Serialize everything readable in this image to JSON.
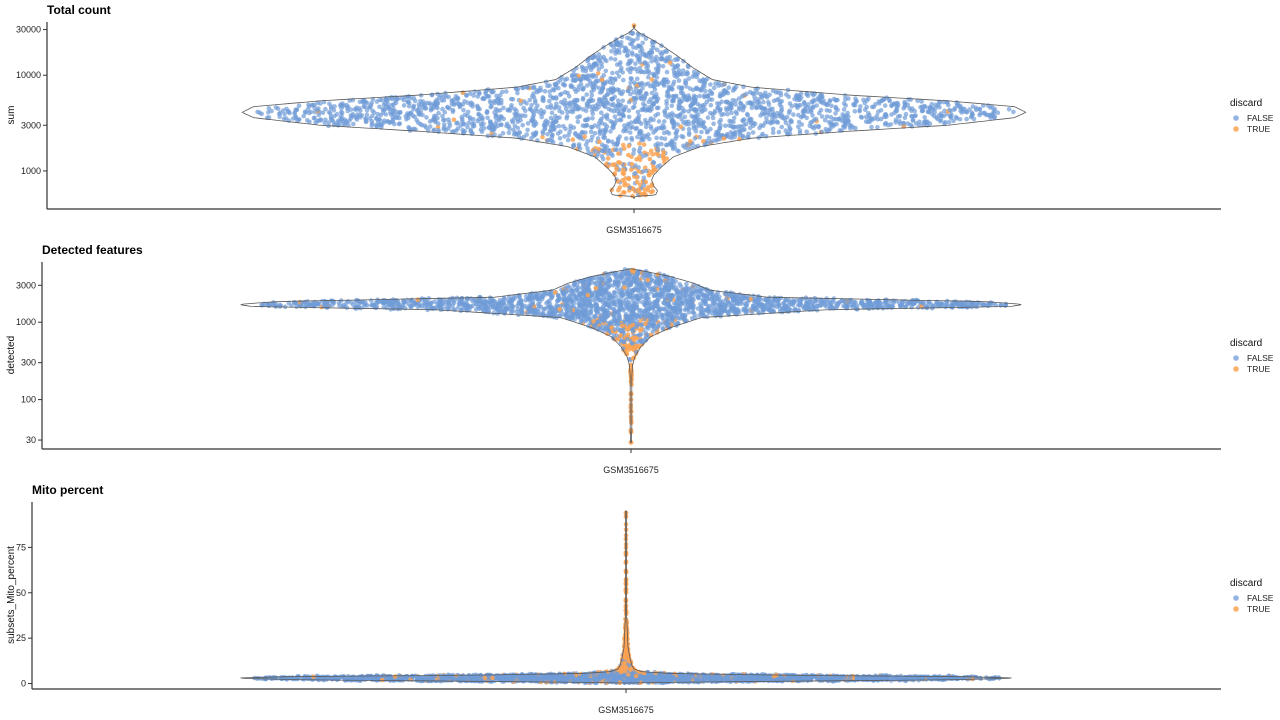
{
  "chart_data": [
    {
      "type": "violin",
      "title": "Total count",
      "xlabel": "",
      "ylabel": "sum",
      "y_scale": "log10",
      "ylim": [
        400,
        36000
      ],
      "y_ticks": [
        1000,
        3000,
        10000,
        30000
      ],
      "y_tick_labels": [
        "1000",
        "3000",
        "10000",
        "30000"
      ],
      "categories": [
        "GSM3516675"
      ],
      "y_extent": [
        520,
        33000
      ],
      "density_profile": [
        [
          540,
          0.0
        ],
        [
          560,
          0.055
        ],
        [
          620,
          0.06
        ],
        [
          700,
          0.05
        ],
        [
          800,
          0.045
        ],
        [
          900,
          0.05
        ],
        [
          1100,
          0.07
        ],
        [
          1400,
          0.1
        ],
        [
          1800,
          0.17
        ],
        [
          2200,
          0.3
        ],
        [
          2600,
          0.55
        ],
        [
          3000,
          0.8
        ],
        [
          3600,
          0.97
        ],
        [
          4100,
          1.0
        ],
        [
          4700,
          0.97
        ],
        [
          5400,
          0.8
        ],
        [
          6200,
          0.55
        ],
        [
          7500,
          0.3
        ],
        [
          9000,
          0.2
        ],
        [
          12000,
          0.15
        ],
        [
          16000,
          0.11
        ],
        [
          20000,
          0.075
        ],
        [
          25000,
          0.035
        ],
        [
          28000,
          0.012
        ],
        [
          31000,
          0.0
        ]
      ],
      "orange_profile": [
        [
          540,
          0.05
        ],
        [
          650,
          0.055
        ],
        [
          800,
          0.04
        ],
        [
          1000,
          0.04
        ],
        [
          1400,
          0.05
        ],
        [
          1800,
          0.04
        ],
        [
          2200,
          0.02
        ],
        [
          3000,
          0.01
        ],
        [
          5000,
          0.008
        ],
        [
          10000,
          0.01
        ],
        [
          20000,
          0.0
        ]
      ],
      "outliers_true": [
        33000
      ],
      "legend": {
        "title": "discard",
        "entries": [
          "FALSE",
          "TRUE"
        ],
        "placement": "right"
      },
      "colors": {
        "FALSE": "#6f9bd7",
        "TRUE": "#fba353"
      }
    },
    {
      "type": "violin",
      "title": "Detected features",
      "xlabel": "",
      "ylabel": "detected",
      "y_scale": "log10",
      "ylim": [
        23,
        6000
      ],
      "y_ticks": [
        30,
        100,
        300,
        1000,
        3000
      ],
      "y_tick_labels": [
        "30",
        "100",
        "300",
        "1000",
        "3000"
      ],
      "categories": [
        "GSM3516675"
      ],
      "y_extent": [
        28,
        4900
      ],
      "density_profile": [
        [
          28,
          0.0
        ],
        [
          40,
          0.002
        ],
        [
          100,
          0.002
        ],
        [
          200,
          0.002
        ],
        [
          280,
          0.004
        ],
        [
          360,
          0.01
        ],
        [
          480,
          0.025
        ],
        [
          650,
          0.05
        ],
        [
          850,
          0.1
        ],
        [
          1150,
          0.18
        ],
        [
          1450,
          0.5
        ],
        [
          1600,
          0.97
        ],
        [
          1700,
          1.0
        ],
        [
          1850,
          0.9
        ],
        [
          2100,
          0.35
        ],
        [
          2600,
          0.2
        ],
        [
          3200,
          0.16
        ],
        [
          3900,
          0.1
        ],
        [
          4500,
          0.04
        ],
        [
          4900,
          0.0
        ]
      ],
      "orange_profile": [
        [
          300,
          0.006
        ],
        [
          400,
          0.01
        ],
        [
          520,
          0.02
        ],
        [
          650,
          0.03
        ],
        [
          800,
          0.03
        ],
        [
          1000,
          0.02
        ],
        [
          1400,
          0.01
        ],
        [
          2500,
          0.008
        ],
        [
          4000,
          0.004
        ]
      ],
      "outliers_true": [
        28,
        38,
        40,
        60,
        70,
        100,
        120,
        170,
        200,
        230,
        250,
        280
      ],
      "legend": {
        "title": "discard",
        "entries": [
          "FALSE",
          "TRUE"
        ],
        "placement": "right"
      },
      "colors": {
        "FALSE": "#6f9bd7",
        "TRUE": "#fba353"
      }
    },
    {
      "type": "violin",
      "title": "Mito percent",
      "xlabel": "",
      "ylabel": "subsets_Mito_percent",
      "y_scale": "linear",
      "ylim": [
        -3,
        100
      ],
      "y_ticks": [
        0,
        25,
        50,
        75
      ],
      "y_tick_labels": [
        "0",
        "25",
        "50",
        "75"
      ],
      "categories": [
        "GSM3516675"
      ],
      "y_extent": [
        0.3,
        95
      ],
      "density_profile": [
        [
          0.3,
          0.0
        ],
        [
          1.0,
          0.25
        ],
        [
          2.0,
          0.8
        ],
        [
          3.0,
          1.0
        ],
        [
          3.8,
          0.85
        ],
        [
          4.6,
          0.4
        ],
        [
          5.5,
          0.12
        ],
        [
          6.5,
          0.04
        ],
        [
          8,
          0.02
        ],
        [
          10,
          0.015
        ],
        [
          14,
          0.01
        ],
        [
          20,
          0.005
        ],
        [
          30,
          0.003
        ],
        [
          40,
          0.001
        ],
        [
          95,
          0.0
        ]
      ],
      "orange_profile": [
        [
          1.0,
          0.03
        ],
        [
          3.0,
          0.04
        ],
        [
          5,
          0.05
        ],
        [
          6.5,
          0.03
        ],
        [
          8,
          0.02
        ],
        [
          10,
          0.015
        ],
        [
          14,
          0.01
        ],
        [
          20,
          0.006
        ],
        [
          26,
          0.004
        ],
        [
          33,
          0.002
        ]
      ],
      "outliers_true": [
        35,
        40,
        52,
        55,
        71,
        72,
        92,
        94
      ],
      "legend": {
        "title": "discard",
        "entries": [
          "FALSE",
          "TRUE"
        ],
        "placement": "right"
      },
      "colors": {
        "FALSE": "#6f9bd7",
        "TRUE": "#fba353"
      }
    }
  ]
}
